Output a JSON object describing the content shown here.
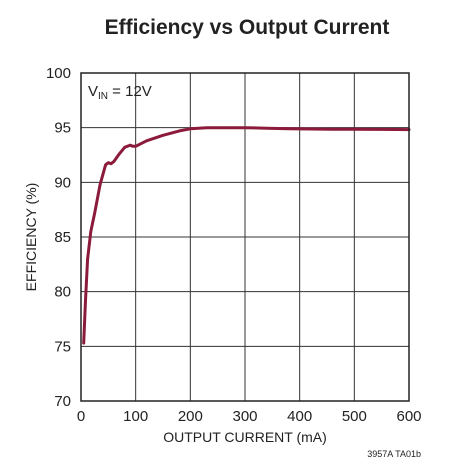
{
  "chart_data": {
    "type": "line",
    "title": "Efficiency vs Output Current",
    "xlabel": "OUTPUT CURRENT (mA)",
    "ylabel": "EFFICIENCY (%)",
    "xlim": [
      0,
      600
    ],
    "ylim": [
      70,
      100
    ],
    "x_ticks": [
      0,
      100,
      200,
      300,
      400,
      500,
      600
    ],
    "y_ticks": [
      70,
      75,
      80,
      85,
      90,
      95,
      100
    ],
    "grid": true,
    "annotation": {
      "main": "V",
      "sub": "IN",
      "suffix": " = 12V"
    },
    "figure_id": "3957A TA01b",
    "line_color": "#8B1A3B",
    "series": [
      {
        "x": [
          5,
          8,
          12,
          18,
          25,
          35,
          45,
          50,
          55,
          60,
          70,
          80,
          90,
          95,
          100,
          120,
          150,
          180,
          200,
          230,
          260,
          300,
          340,
          380,
          420,
          460,
          500,
          540,
          580,
          600
        ],
        "values": [
          75.3,
          79,
          83,
          85.5,
          87.2,
          89.8,
          91.6,
          91.8,
          91.7,
          91.9,
          92.6,
          93.2,
          93.4,
          93.3,
          93.3,
          93.8,
          94.3,
          94.7,
          94.9,
          95.0,
          95.0,
          95.0,
          94.95,
          94.9,
          94.88,
          94.85,
          94.85,
          94.84,
          94.83,
          94.82
        ]
      }
    ]
  }
}
